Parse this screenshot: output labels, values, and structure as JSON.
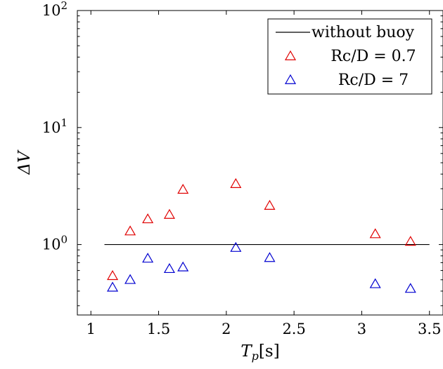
{
  "chart_data": {
    "type": "scatter",
    "title": "",
    "xlabel_main": "T",
    "xlabel_sub": "p",
    "xlabel_rest": "[s]",
    "ylabel": "ΔV",
    "xlim": [
      0.9,
      3.6
    ],
    "ylim": [
      0.25,
      100
    ],
    "yscale": "log",
    "x_ticks": [
      {
        "value": 1,
        "label": "1"
      },
      {
        "value": 1.5,
        "label": "1.5"
      },
      {
        "value": 2,
        "label": "2"
      },
      {
        "value": 2.5,
        "label": "2.5"
      },
      {
        "value": 3,
        "label": "3"
      },
      {
        "value": 3.5,
        "label": "3.5"
      }
    ],
    "y_ticks": [
      {
        "value": 1,
        "base": "10",
        "exp": "0"
      },
      {
        "value": 10,
        "base": "10",
        "exp": "1"
      },
      {
        "value": 100,
        "base": "10",
        "exp": "2"
      }
    ],
    "grid": false,
    "legend_position": "top-right",
    "series": [
      {
        "name": "without buoy",
        "kind": "line",
        "color": "#000000",
        "x": [
          1.1,
          3.5
        ],
        "y": [
          1.0,
          1.0
        ]
      },
      {
        "name": "Rc/D = 0.7",
        "kind": "triangle",
        "color": "#e00000",
        "x": [
          1.16,
          1.29,
          1.42,
          1.58,
          1.68,
          2.07,
          2.32,
          3.1,
          3.36
        ],
        "y": [
          0.54,
          1.3,
          1.65,
          1.8,
          2.95,
          3.3,
          2.15,
          1.23,
          1.06
        ]
      },
      {
        "name": "Rc/D = 7",
        "kind": "triangle",
        "color": "#0000d0",
        "x": [
          1.16,
          1.29,
          1.42,
          1.58,
          1.68,
          2.07,
          2.32,
          3.1,
          3.36
        ],
        "y": [
          0.43,
          0.5,
          0.76,
          0.62,
          0.64,
          0.94,
          0.77,
          0.46,
          0.42
        ]
      }
    ]
  }
}
